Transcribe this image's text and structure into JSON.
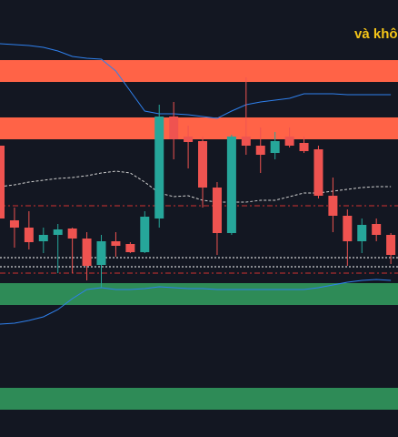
{
  "chart_data": {
    "type": "candlestick",
    "title": "và khô",
    "ylim": [
      0,
      480
    ],
    "up_color": "#26a69a",
    "down_color": "#ef5350",
    "open": [
      320,
      238,
      230,
      215,
      222,
      229,
      218,
      189,
      215,
      212,
      203,
      240,
      352,
      330,
      325,
      274,
      224,
      330,
      320,
      312,
      330,
      323,
      316,
      265,
      243,
      215,
      234,
      222
    ],
    "close": [
      240,
      230,
      214,
      222,
      228,
      218,
      188,
      215,
      210,
      203,
      242,
      352,
      327,
      324,
      274,
      224,
      330,
      320,
      310,
      325,
      320,
      314,
      265,
      243,
      215,
      233,
      222,
      200
    ],
    "high": [
      320,
      252,
      248,
      230,
      234,
      230,
      225,
      222,
      225,
      214,
      248,
      365,
      368,
      342,
      330,
      280,
      332,
      395,
      340,
      335,
      340,
      330,
      320,
      285,
      250,
      240,
      240,
      224
    ],
    "low": [
      240,
      208,
      206,
      202,
      180,
      180,
      172,
      164,
      198,
      202,
      202,
      230,
      305,
      295,
      252,
      200,
      222,
      310,
      290,
      305,
      318,
      312,
      262,
      225,
      188,
      202,
      215,
      190
    ],
    "bands": [
      {
        "color": "#2f80ed",
        "style": "solid",
        "values": [
          432,
          431,
          430,
          428,
          424,
          418,
          416,
          415,
          402,
          380,
          358,
          355,
          355,
          354,
          352,
          350,
          358,
          365,
          368,
          370,
          372,
          377,
          377,
          377,
          376,
          376,
          376,
          376
        ]
      },
      {
        "color": "#d0d0d0",
        "style": "dashed",
        "values": [
          275,
          277,
          280,
          282,
          284,
          285,
          287,
          290,
          292,
          290,
          280,
          268,
          264,
          265,
          260,
          258,
          258,
          258,
          260,
          260,
          264,
          268,
          268,
          270,
          272,
          274,
          275,
          275
        ]
      },
      {
        "color": "#2f80ed",
        "style": "solid",
        "values": [
          124,
          125,
          128,
          132,
          140,
          152,
          162,
          164,
          162,
          162,
          163,
          165,
          164,
          163,
          163,
          162,
          162,
          162,
          162,
          162,
          162,
          162,
          164,
          167,
          170,
          172,
          173,
          172
        ]
      }
    ],
    "zones": [
      {
        "color": "#ff6347",
        "range": [
          390,
          414
        ]
      },
      {
        "color": "#ff6347",
        "range": [
          327,
          351
        ]
      },
      {
        "color": "#2e8b57",
        "range": [
          145,
          169
        ]
      },
      {
        "color": "#2e8b57",
        "range": [
          30,
          54
        ]
      }
    ],
    "levels": [
      {
        "value": 254,
        "color": "#d03030",
        "style": "dashdot"
      },
      {
        "value": 180,
        "color": "#d03030",
        "style": "dashdot"
      },
      {
        "value": 197,
        "color": "#ffffff",
        "style": "dotted"
      },
      {
        "value": 187,
        "color": "#ffffff",
        "style": "dotted"
      }
    ]
  }
}
